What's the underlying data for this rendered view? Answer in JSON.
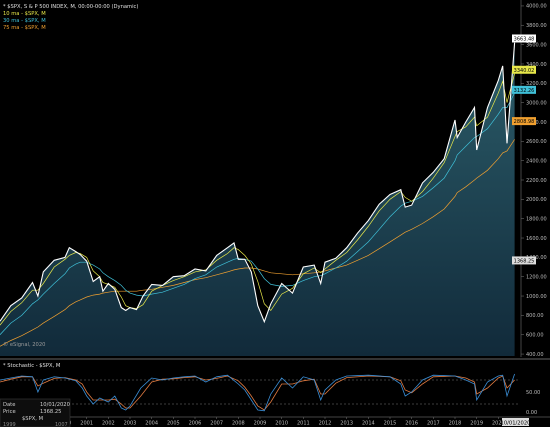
{
  "header": {
    "title": "* $SPX, S & P 500 INDEX, M, 00:00-00:00 (Dynamic)",
    "ma_labels": [
      {
        "text": "10 ma - $SPX, M",
        "color": "#e8e84a"
      },
      {
        "text": "30 ma - $SPX, M",
        "color": "#3fc0d8"
      },
      {
        "text": "75 ma - $SPX, M",
        "color": "#f0a030"
      }
    ]
  },
  "watermark": "© eSignal, 2020",
  "stoch_label": "* Stochastic - $SPX, M",
  "info_box": {
    "date_label": "Date",
    "date_value": "10/01/2020",
    "price_label": "Price",
    "price_value": "1368.25",
    "symbol": "$SPX, M",
    "footer_left": "1999",
    "footer_right": "1007"
  },
  "colors": {
    "background": "#000000",
    "price_line": "#ffffff",
    "fill_top": "#2c5d6a",
    "fill_bottom": "#112a3a",
    "ma10": "#e8e84a",
    "ma30": "#3fc0d8",
    "ma75": "#f0a030",
    "stoch_k": "#3a8fd8",
    "stoch_d": "#e07a40"
  },
  "chart_data": [
    {
      "type": "area",
      "title": "$SPX, S & P 500 INDEX, M",
      "x": [
        1997.0,
        1997.5,
        1998.0,
        1998.5,
        1998.75,
        1999.0,
        1999.5,
        2000.0,
        2000.2,
        2000.5,
        2000.7,
        2001.0,
        2001.3,
        2001.6,
        2001.75,
        2002.0,
        2002.3,
        2002.6,
        2002.8,
        2003.0,
        2003.3,
        2003.6,
        2004.0,
        2004.5,
        2005.0,
        2005.5,
        2006.0,
        2006.5,
        2007.0,
        2007.5,
        2007.8,
        2008.0,
        2008.3,
        2008.6,
        2008.9,
        2009.2,
        2009.5,
        2010.0,
        2010.5,
        2011.0,
        2011.5,
        2011.8,
        2012.0,
        2012.5,
        2013.0,
        2013.5,
        2014.0,
        2014.5,
        2015.0,
        2015.5,
        2015.7,
        2016.0,
        2016.5,
        2017.0,
        2017.5,
        2018.0,
        2018.1,
        2018.5,
        2018.9,
        2019.0,
        2019.5,
        2020.0,
        2020.2,
        2020.4,
        2020.75
      ],
      "series": [
        {
          "values": [
            740,
            900,
            980,
            1140,
            1000,
            1250,
            1370,
            1400,
            1500,
            1460,
            1430,
            1360,
            1150,
            1200,
            1050,
            1130,
            1070,
            880,
            850,
            880,
            860,
            1000,
            1120,
            1110,
            1200,
            1210,
            1280,
            1260,
            1420,
            1500,
            1550,
            1380,
            1380,
            1250,
            900,
            735,
            920,
            1130,
            1030,
            1300,
            1320,
            1130,
            1350,
            1390,
            1500,
            1650,
            1780,
            1950,
            2050,
            2100,
            1920,
            1940,
            2170,
            2280,
            2420,
            2820,
            2640,
            2800,
            2950,
            2510,
            2950,
            3230,
            3380,
            2580,
            3620
          ]
        },
        {
          "name": "10 ma - $SPX, M",
          "values": [
            700,
            840,
            930,
            1060,
            1060,
            1130,
            1300,
            1380,
            1420,
            1450,
            1440,
            1400,
            1260,
            1200,
            1140,
            1120,
            1090,
            990,
            900,
            880,
            870,
            910,
            1050,
            1110,
            1160,
            1200,
            1250,
            1270,
            1370,
            1440,
            1500,
            1480,
            1420,
            1330,
            1150,
            920,
            850,
            1020,
            1080,
            1230,
            1290,
            1240,
            1280,
            1370,
            1450,
            1580,
            1720,
            1880,
            2000,
            2080,
            2020,
            1980,
            2080,
            2220,
            2380,
            2650,
            2700,
            2750,
            2850,
            2760,
            2850,
            3100,
            3220,
            3000,
            3300
          ]
        },
        {
          "name": "30 ma - $SPX, M",
          "values": [
            600,
            720,
            800,
            920,
            960,
            1020,
            1130,
            1230,
            1290,
            1330,
            1350,
            1350,
            1320,
            1280,
            1240,
            1200,
            1160,
            1110,
            1060,
            1030,
            1010,
            1000,
            1020,
            1040,
            1080,
            1120,
            1180,
            1220,
            1300,
            1350,
            1380,
            1390,
            1380,
            1360,
            1280,
            1180,
            1120,
            1100,
            1110,
            1160,
            1200,
            1210,
            1230,
            1290,
            1360,
            1460,
            1560,
            1690,
            1820,
            1930,
            1960,
            1980,
            2030,
            2120,
            2220,
            2400,
            2460,
            2550,
            2640,
            2650,
            2730,
            2880,
            2950,
            2950,
            3100
          ]
        },
        {
          "name": "75 ma - $SPX, M",
          "values": [
            480,
            540,
            590,
            650,
            680,
            720,
            790,
            860,
            900,
            940,
            960,
            990,
            1010,
            1020,
            1030,
            1040,
            1050,
            1050,
            1050,
            1050,
            1050,
            1060,
            1070,
            1090,
            1110,
            1140,
            1170,
            1190,
            1220,
            1250,
            1270,
            1280,
            1290,
            1290,
            1280,
            1260,
            1240,
            1230,
            1220,
            1230,
            1240,
            1250,
            1260,
            1290,
            1320,
            1370,
            1420,
            1490,
            1560,
            1630,
            1660,
            1690,
            1750,
            1820,
            1900,
            2030,
            2070,
            2130,
            2200,
            2220,
            2300,
            2420,
            2480,
            2500,
            2620
          ]
        }
      ],
      "price_labels_right": [
        {
          "text": "3663.48",
          "value": 3663.48,
          "bg": "#ffffff",
          "fg": "#000000"
        },
        {
          "text": "3340.02",
          "value": 3340.02,
          "bg": "#e8e84a",
          "fg": "#000000"
        },
        {
          "text": "3132.26",
          "value": 3132.26,
          "bg": "#3fc0d8",
          "fg": "#000000"
        },
        {
          "text": "2808.98",
          "value": 2808.98,
          "bg": "#f0a030",
          "fg": "#000000"
        },
        {
          "text": "1368.25",
          "value": 1368.25,
          "bg": "#dddddd",
          "fg": "#000000"
        }
      ],
      "y_ticks": [
        "4000.00",
        "3800.00",
        "3600.00",
        "3400.00",
        "3200.00",
        "3000.00",
        "2800.00",
        "2600.00",
        "2400.00",
        "2200.00",
        "2000.00",
        "1800.00",
        "1600.00",
        "1400.00",
        "1200.00",
        "1000.00",
        "800.00",
        "600.00",
        "400.00"
      ],
      "y_tick_values": [
        4000,
        3800,
        3600,
        3400,
        3200,
        3000,
        2800,
        2600,
        2400,
        2200,
        2000,
        1800,
        1600,
        1400,
        1200,
        1000,
        800,
        600,
        400
      ],
      "ylim": [
        380,
        4020
      ],
      "xlim": [
        1997.0,
        2021.0
      ]
    },
    {
      "type": "line",
      "title": "Stochastic - $SPX, M",
      "x": [
        1997.0,
        1997.5,
        1998.0,
        1998.5,
        1998.75,
        1999.0,
        1999.5,
        2000.0,
        2000.5,
        2000.8,
        2001.0,
        2001.3,
        2001.6,
        2002.0,
        2002.3,
        2002.6,
        2002.8,
        2003.0,
        2003.5,
        2004.0,
        2004.5,
        2005.0,
        2005.5,
        2006.0,
        2006.5,
        2007.0,
        2007.5,
        2008.0,
        2008.3,
        2008.6,
        2008.9,
        2009.2,
        2009.5,
        2010.0,
        2010.5,
        2011.0,
        2011.5,
        2011.8,
        2012.0,
        2012.5,
        2013.0,
        2014.0,
        2015.0,
        2015.5,
        2015.7,
        2016.0,
        2016.5,
        2017.0,
        2018.0,
        2018.5,
        2018.9,
        2019.0,
        2019.5,
        2020.0,
        2020.2,
        2020.4,
        2020.75
      ],
      "series": [
        {
          "name": "%K",
          "values": [
            80,
            85,
            90,
            88,
            50,
            80,
            88,
            85,
            78,
            60,
            40,
            20,
            35,
            25,
            40,
            10,
            5,
            15,
            60,
            85,
            80,
            85,
            88,
            90,
            75,
            88,
            92,
            70,
            55,
            30,
            5,
            3,
            45,
            85,
            60,
            88,
            80,
            30,
            55,
            80,
            90,
            92,
            88,
            70,
            40,
            50,
            80,
            92,
            90,
            80,
            70,
            30,
            75,
            90,
            92,
            40,
            95
          ]
        },
        {
          "name": "%D",
          "values": [
            75,
            82,
            88,
            88,
            65,
            72,
            84,
            86,
            80,
            70,
            50,
            30,
            30,
            30,
            32,
            20,
            10,
            10,
            40,
            75,
            82,
            83,
            86,
            88,
            80,
            84,
            90,
            78,
            62,
            40,
            15,
            5,
            25,
            70,
            70,
            78,
            82,
            45,
            45,
            72,
            86,
            90,
            88,
            78,
            55,
            48,
            70,
            88,
            90,
            85,
            75,
            45,
            60,
            85,
            90,
            60,
            80
          ]
        }
      ],
      "y_ticks": [
        "50.00",
        "0.00"
      ],
      "y_tick_values": [
        50,
        0
      ],
      "ylim": [
        -5,
        105
      ],
      "reference_lines": [
        80,
        20
      ]
    }
  ],
  "x_axis": {
    "labels": [
      "1998",
      "1999",
      "2000",
      "2001",
      "2002",
      "2003",
      "2004",
      "2005",
      "2006",
      "2007",
      "2008",
      "2009",
      "2010",
      "2011",
      "2012",
      "2013",
      "2014",
      "2015",
      "2016",
      "2017",
      "2018",
      "2019",
      "2020"
    ],
    "values": [
      1998,
      1999,
      2000,
      2001,
      2002,
      2003,
      2004,
      2005,
      2006,
      2007,
      2008,
      2009,
      2010,
      2011,
      2012,
      2013,
      2014,
      2015,
      2016,
      2017,
      2018,
      2019,
      2020
    ],
    "current_label": "10/01/2020"
  }
}
